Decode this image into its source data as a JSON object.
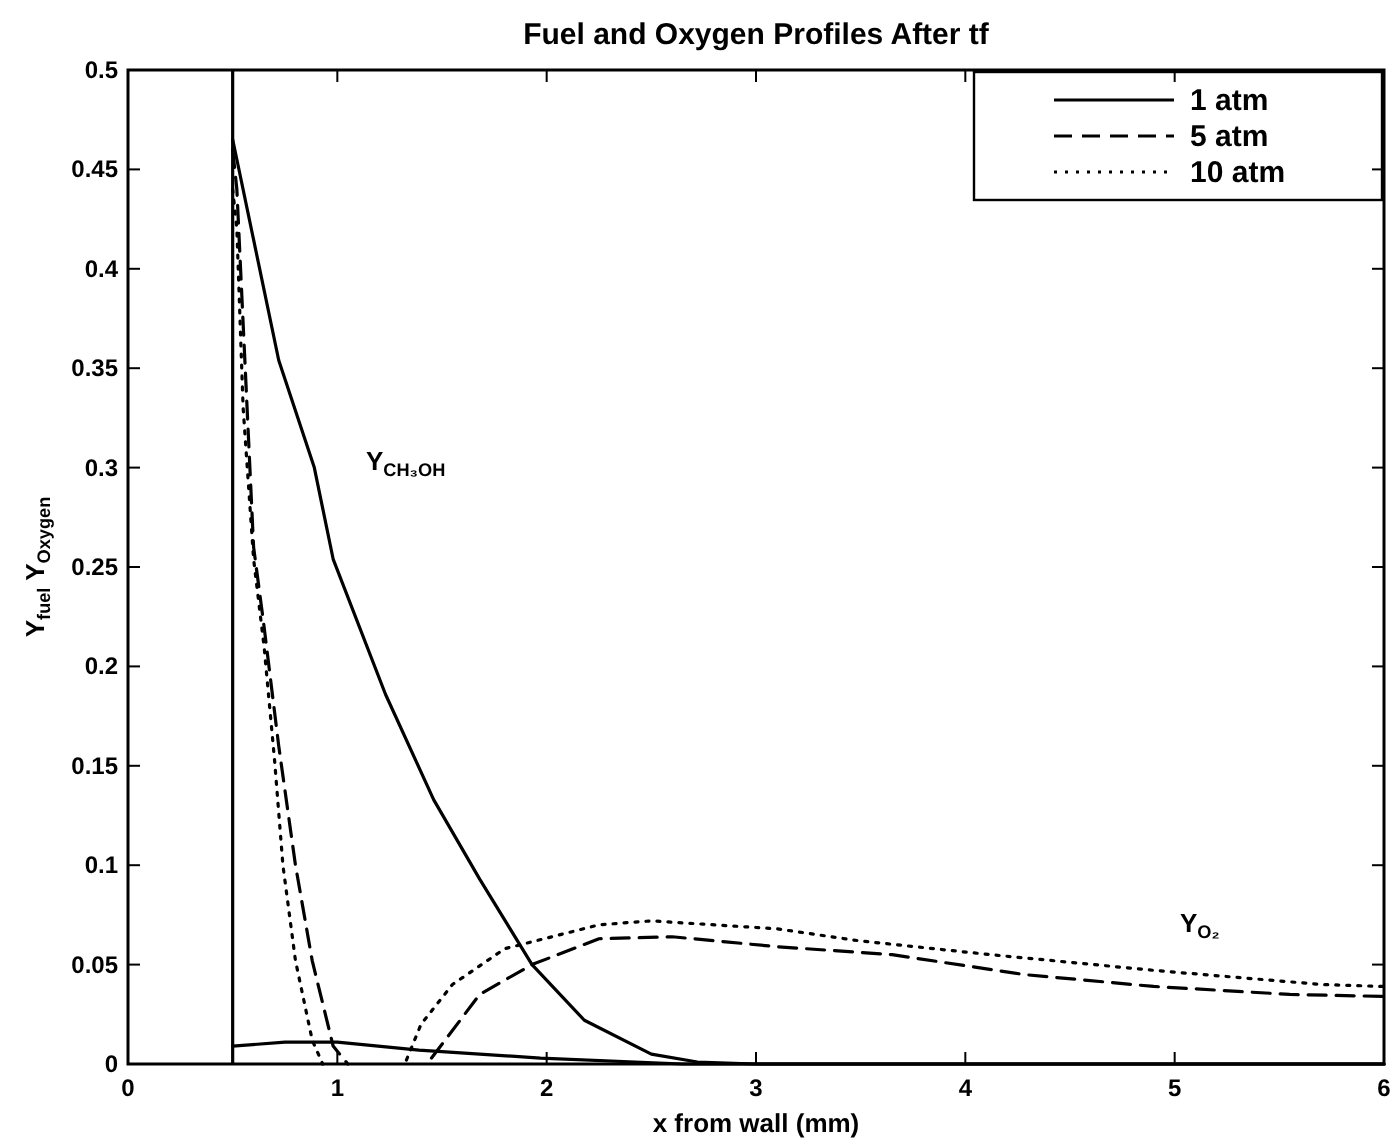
{
  "chart_data": {
    "type": "line",
    "title": "Fuel and Oxygen Profiles After tf",
    "xlabel": "x from wall (mm)",
    "ylabel": "Y$_{fuel}$   Y$_{Oxygen}$",
    "xlim": [
      0,
      6
    ],
    "xticks": [
      0,
      1,
      2,
      3,
      4,
      5,
      6
    ],
    "ylim": [
      0,
      0.5
    ],
    "yticks": [
      0,
      0.05,
      0.1,
      0.15,
      0.2,
      0.25,
      0.3,
      0.35,
      0.4,
      0.45,
      0.5
    ],
    "grid": false,
    "legend": "top right",
    "ref_lines": [
      {
        "axis": "x",
        "value": 0.5,
        "color": "#000000",
        "line_style": "solid"
      }
    ],
    "annotations": [
      "Y$_{CH₃OH}$",
      "Y$_{O₂}$"
    ],
    "series": [
      {
        "name": "1 atm",
        "color": "#000000",
        "line_style": "solid",
        "x": [
          0.5,
          0.52,
          0.72,
          0.89,
          0.98,
          1.23,
          1.46,
          1.68,
          1.93,
          2.18,
          2.5,
          2.72,
          3,
          4,
          5,
          6
        ],
        "values": [
          0.465,
          0.455,
          0.354,
          0.3,
          0.254,
          0.186,
          0.133,
          0.093,
          0.05,
          0.022,
          0.005,
          0.001,
          0,
          0,
          0,
          0
        ]
      },
      {
        "name": "5 atm",
        "color": "#000000",
        "line_style": "dashed",
        "x": [
          0.5,
          0.52,
          0.56,
          0.6,
          0.65,
          0.72,
          0.8,
          0.88,
          0.98,
          1.05
        ],
        "values": [
          0.46,
          0.44,
          0.35,
          0.26,
          0.22,
          0.16,
          0.1,
          0.052,
          0.009,
          0
        ]
      },
      {
        "name": "10 atm",
        "color": "#000000",
        "line_style": "dotted",
        "x": [
          0.5,
          0.52,
          0.55,
          0.6,
          0.65,
          0.7,
          0.74,
          0.8,
          0.88,
          0.93
        ],
        "values": [
          0.44,
          0.42,
          0.33,
          0.254,
          0.21,
          0.153,
          0.1,
          0.052,
          0.012,
          0
        ]
      },
      {
        "color": "#000000",
        "line_style": "solid",
        "x": [
          0.5,
          0.75,
          1.0,
          1.39,
          1.97,
          2.65,
          3,
          4,
          5,
          6
        ],
        "values": [
          0.009,
          0.011,
          0.011,
          0.007,
          0.003,
          0,
          0,
          0,
          0,
          0
        ]
      },
      {
        "color": "#000000",
        "line_style": "dashed",
        "x": [
          1.45,
          1.68,
          1.93,
          2.25,
          2.6,
          3.1,
          3.65,
          4.28,
          4.9,
          5.55,
          6.0
        ],
        "values": [
          0.003,
          0.035,
          0.05,
          0.063,
          0.064,
          0.059,
          0.055,
          0.045,
          0.039,
          0.035,
          0.034
        ]
      },
      {
        "color": "#000000",
        "line_style": "dotted",
        "x": [
          1.33,
          1.4,
          1.55,
          1.8,
          2.25,
          2.5,
          3.1,
          3.49,
          4.12,
          4.91,
          5.7,
          6.0
        ],
        "values": [
          0.002,
          0.02,
          0.04,
          0.058,
          0.07,
          0.072,
          0.068,
          0.062,
          0.055,
          0.047,
          0.04,
          0.039
        ]
      }
    ]
  }
}
